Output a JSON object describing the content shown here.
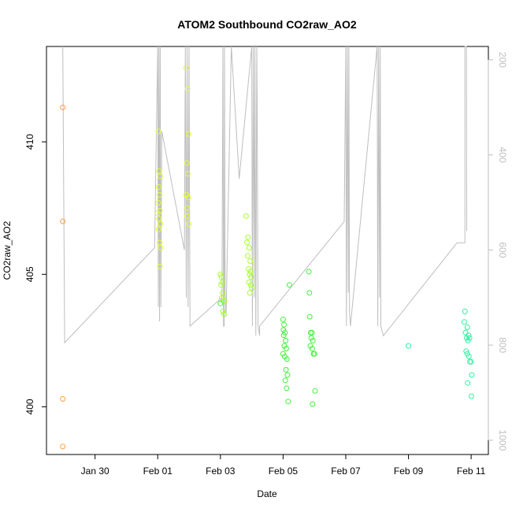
{
  "chart_data": {
    "type": "scatter",
    "title": "ATOM2 Southbound CO2raw_AO2",
    "xlabel": "Date",
    "ylabel": "CO2raw_AO2",
    "y2label": "",
    "x_unit": "days since Jan 29 00:00 (axis shows dates)",
    "xlim": [
      -0.55,
      13.55
    ],
    "ylim": [
      398.2,
      413.6
    ],
    "y2lim": [
      1030,
      172
    ],
    "x_ticks": [
      {
        "x": 1,
        "label": "Jan 30"
      },
      {
        "x": 3,
        "label": "Feb 01"
      },
      {
        "x": 5,
        "label": "Feb 03"
      },
      {
        "x": 7,
        "label": "Feb 05"
      },
      {
        "x": 9,
        "label": "Feb 07"
      },
      {
        "x": 11,
        "label": "Feb 09"
      },
      {
        "x": 13,
        "label": "Feb 11"
      }
    ],
    "y_ticks": [
      {
        "y": 400,
        "label": "400"
      },
      {
        "y": 405,
        "label": "405"
      },
      {
        "y": 410,
        "label": "410"
      }
    ],
    "y2_ticks": [
      {
        "y": 200,
        "label": "200"
      },
      {
        "y": 400,
        "label": "400"
      },
      {
        "y": 600,
        "label": "600"
      },
      {
        "y": 800,
        "label": "800"
      },
      {
        "y": 1000,
        "label": "1000"
      }
    ],
    "series": [
      {
        "name": "",
        "color": "#FFA040",
        "points": [
          [
            -0.03,
            411.3
          ],
          [
            -0.03,
            407.0
          ],
          [
            -0.03,
            400.3
          ],
          [
            -0.03,
            398.5
          ]
        ]
      },
      {
        "name": "",
        "color": "#E3FF33",
        "points": [
          [
            3.02,
            410.4
          ],
          [
            3.05,
            408.9
          ],
          [
            3.08,
            408.7
          ],
          [
            3.03,
            408.3
          ],
          [
            3.06,
            408.0
          ],
          [
            3.02,
            407.7
          ],
          [
            3.07,
            407.4
          ],
          [
            3.0,
            407.3
          ],
          [
            3.04,
            407.1
          ],
          [
            3.09,
            406.9
          ],
          [
            3.03,
            406.7
          ],
          [
            3.06,
            406.2
          ],
          [
            3.1,
            406.0
          ],
          [
            3.07,
            405.3
          ],
          [
            3.9,
            412.8
          ],
          [
            3.95,
            412.0
          ],
          [
            3.98,
            410.3
          ],
          [
            3.93,
            409.2
          ],
          [
            3.96,
            408.8
          ],
          [
            3.91,
            408.0
          ],
          [
            3.98,
            407.9
          ],
          [
            3.94,
            407.5
          ],
          [
            3.99,
            406.9
          ],
          [
            3.93,
            407.2
          ]
        ]
      },
      {
        "name": "",
        "color": "#A7FF2E",
        "points": [
          [
            5.0,
            405.0
          ],
          [
            5.03,
            404.9
          ],
          [
            5.06,
            404.7
          ],
          [
            5.02,
            404.6
          ],
          [
            5.07,
            404.3
          ],
          [
            5.04,
            404.1
          ],
          [
            5.09,
            404.0
          ],
          [
            5.12,
            404.0
          ],
          [
            5.08,
            403.6
          ],
          [
            5.11,
            403.5
          ],
          [
            5.82,
            407.2
          ],
          [
            5.88,
            406.4
          ],
          [
            5.85,
            406.2
          ],
          [
            5.92,
            406.0
          ],
          [
            5.87,
            405.7
          ],
          [
            5.95,
            405.5
          ],
          [
            5.9,
            405.2
          ],
          [
            5.96,
            405.1
          ],
          [
            5.93,
            405.0
          ],
          [
            5.98,
            404.9
          ],
          [
            5.91,
            404.7
          ],
          [
            5.97,
            404.6
          ],
          [
            6.0,
            404.5
          ],
          [
            5.94,
            404.3
          ]
        ]
      },
      {
        "name": "",
        "color": "#43F23A",
        "points": [
          [
            7.0,
            403.3
          ],
          [
            7.03,
            403.1
          ],
          [
            7.01,
            402.9
          ],
          [
            7.06,
            402.8
          ],
          [
            7.02,
            402.7
          ],
          [
            7.08,
            402.5
          ],
          [
            7.04,
            402.3
          ],
          [
            7.1,
            402.2
          ],
          [
            7.0,
            402.0
          ],
          [
            7.05,
            401.9
          ],
          [
            7.12,
            401.8
          ],
          [
            7.09,
            401.4
          ],
          [
            7.14,
            401.2
          ],
          [
            7.07,
            401.0
          ],
          [
            7.11,
            400.7
          ],
          [
            7.16,
            400.2
          ],
          [
            7.2,
            404.6
          ],
          [
            5.0,
            403.9
          ],
          [
            7.85,
            403.4
          ],
          [
            7.88,
            402.8
          ],
          [
            7.92,
            402.8
          ],
          [
            7.9,
            402.6
          ],
          [
            7.95,
            402.5
          ],
          [
            7.87,
            402.3
          ],
          [
            7.93,
            402.2
          ],
          [
            8.0,
            402.0
          ],
          [
            7.97,
            402.0
          ],
          [
            7.82,
            405.1
          ],
          [
            7.84,
            404.3
          ],
          [
            8.02,
            400.6
          ],
          [
            7.94,
            400.1
          ]
        ]
      },
      {
        "name": "",
        "color": "#2EF2A3",
        "points": [
          [
            11.0,
            402.3
          ],
          [
            12.8,
            403.6
          ],
          [
            12.78,
            403.2
          ],
          [
            12.88,
            403.0
          ],
          [
            12.82,
            402.8
          ],
          [
            12.92,
            402.7
          ],
          [
            12.86,
            402.6
          ],
          [
            12.95,
            402.6
          ],
          [
            12.9,
            402.5
          ],
          [
            12.84,
            402.1
          ],
          [
            12.88,
            402.0
          ],
          [
            12.93,
            401.9
          ],
          [
            12.96,
            401.7
          ],
          [
            13.0,
            401.7
          ],
          [
            13.02,
            401.2
          ],
          [
            12.89,
            400.9
          ],
          [
            13.01,
            400.4
          ]
        ]
      }
    ],
    "trace": {
      "name": "",
      "color": "#BEBEBE",
      "axis": "y2",
      "points": [
        [
          -0.03,
          172
        ],
        [
          0.03,
          795
        ],
        [
          2.9,
          595
        ],
        [
          3.0,
          172
        ],
        [
          3.02,
          720
        ],
        [
          3.04,
          172
        ],
        [
          3.06,
          750
        ],
        [
          3.08,
          172
        ],
        [
          3.1,
          720
        ],
        [
          3.13,
          350
        ],
        [
          3.85,
          600
        ],
        [
          3.88,
          172
        ],
        [
          3.91,
          700
        ],
        [
          3.94,
          172
        ],
        [
          3.97,
          720
        ],
        [
          4.0,
          172
        ],
        [
          4.03,
          760
        ],
        [
          5.05,
          700
        ],
        [
          5.08,
          172
        ],
        [
          5.1,
          760
        ],
        [
          5.12,
          760
        ],
        [
          5.13,
          172
        ],
        [
          5.15,
          690
        ],
        [
          5.18,
          740
        ],
        [
          5.35,
          172
        ],
        [
          5.6,
          450
        ],
        [
          6.0,
          172
        ],
        [
          6.02,
          760
        ],
        [
          6.05,
          172
        ],
        [
          6.08,
          700
        ],
        [
          6.1,
          172
        ],
        [
          6.13,
          780
        ],
        [
          6.16,
          172
        ],
        [
          6.18,
          400
        ],
        [
          6.2,
          760
        ],
        [
          6.25,
          780
        ],
        [
          6.25,
          760
        ],
        [
          8.95,
          540
        ],
        [
          9.0,
          172
        ],
        [
          9.02,
          760
        ],
        [
          9.05,
          172
        ],
        [
          9.08,
          690
        ],
        [
          9.1,
          172
        ],
        [
          9.12,
          730
        ],
        [
          9.15,
          760
        ],
        [
          10.0,
          172
        ],
        [
          10.02,
          760
        ],
        [
          10.05,
          172
        ],
        [
          10.08,
          700
        ],
        [
          10.1,
          172
        ],
        [
          10.12,
          760
        ],
        [
          10.2,
          780
        ],
        [
          12.55,
          585
        ],
        [
          12.8,
          585
        ],
        [
          12.8,
          172
        ],
        [
          12.85,
          172
        ],
        [
          12.86,
          560
        ]
      ]
    }
  }
}
